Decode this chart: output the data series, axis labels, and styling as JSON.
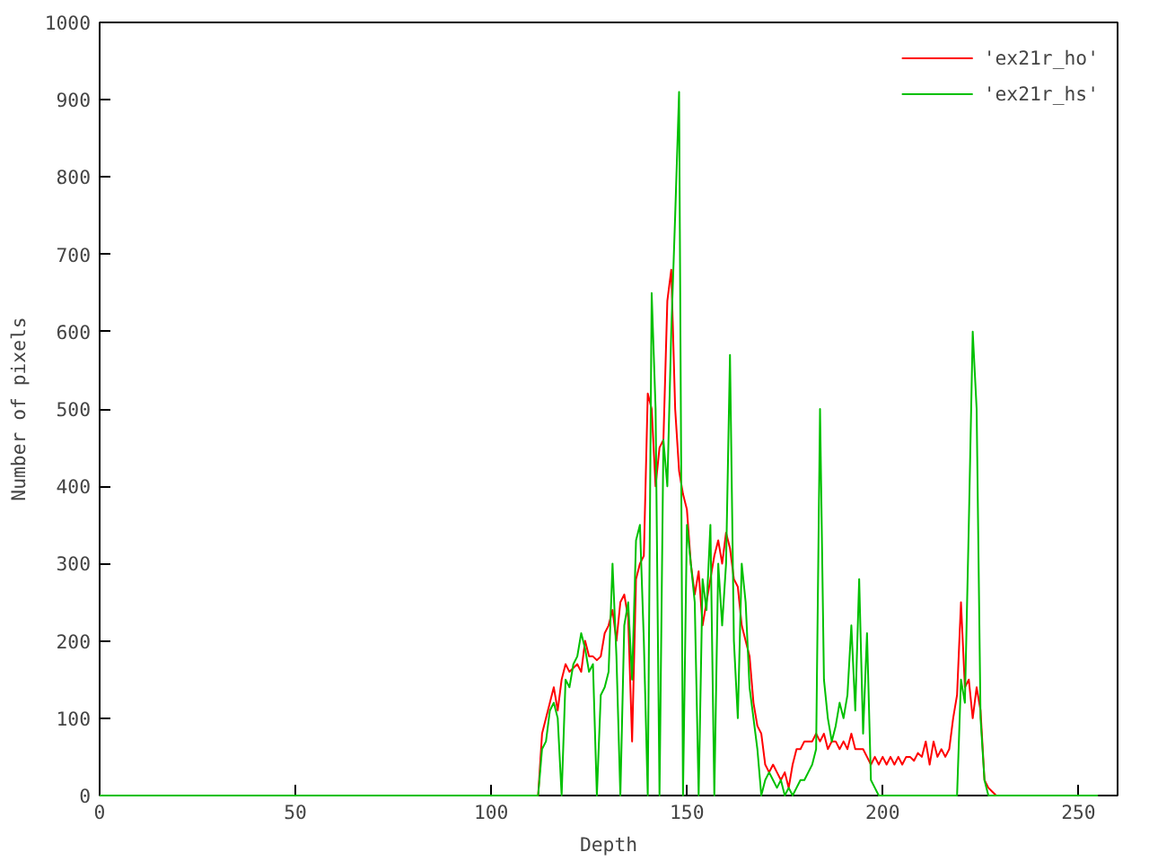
{
  "chart_data": {
    "type": "line",
    "xlabel": "Depth",
    "ylabel": "Number of pixels",
    "x": [
      0,
      111,
      112,
      113,
      114,
      115,
      116,
      117,
      118,
      119,
      120,
      121,
      122,
      123,
      124,
      125,
      126,
      127,
      128,
      129,
      130,
      131,
      132,
      133,
      134,
      135,
      136,
      137,
      138,
      139,
      140,
      141,
      142,
      143,
      144,
      145,
      146,
      147,
      148,
      149,
      150,
      151,
      152,
      153,
      154,
      155,
      156,
      157,
      158,
      159,
      160,
      161,
      162,
      163,
      164,
      165,
      166,
      167,
      168,
      169,
      170,
      171,
      172,
      173,
      174,
      175,
      176,
      177,
      178,
      179,
      180,
      181,
      182,
      183,
      184,
      185,
      186,
      187,
      188,
      189,
      190,
      191,
      192,
      193,
      194,
      195,
      196,
      197,
      198,
      199,
      200,
      201,
      202,
      203,
      204,
      205,
      206,
      207,
      208,
      209,
      210,
      211,
      212,
      213,
      214,
      215,
      216,
      217,
      218,
      219,
      220,
      221,
      222,
      223,
      224,
      225,
      226,
      227,
      228,
      229,
      230,
      255
    ],
    "series": [
      {
        "name": "'ex21r_ho'",
        "color": "#ff0000",
        "values": [
          0,
          0,
          0,
          80,
          100,
          120,
          140,
          110,
          150,
          170,
          160,
          165,
          170,
          160,
          200,
          180,
          180,
          175,
          180,
          210,
          220,
          240,
          200,
          250,
          260,
          230,
          70,
          280,
          300,
          310,
          520,
          500,
          400,
          450,
          460,
          640,
          680,
          500,
          420,
          390,
          370,
          300,
          260,
          290,
          220,
          250,
          280,
          310,
          330,
          300,
          340,
          320,
          280,
          270,
          220,
          200,
          180,
          120,
          90,
          80,
          40,
          30,
          40,
          30,
          20,
          30,
          10,
          40,
          60,
          60,
          70,
          70,
          70,
          80,
          70,
          80,
          60,
          70,
          70,
          60,
          70,
          60,
          80,
          60,
          60,
          60,
          50,
          40,
          50,
          40,
          50,
          40,
          50,
          40,
          50,
          40,
          50,
          50,
          45,
          55,
          50,
          70,
          40,
          70,
          50,
          60,
          50,
          60,
          100,
          130,
          250,
          140,
          150,
          100,
          140,
          110,
          20,
          10,
          5,
          0,
          0,
          0
        ]
      },
      {
        "name": "'ex21r_hs'",
        "color": "#00c000",
        "values": [
          0,
          0,
          0,
          60,
          70,
          110,
          120,
          100,
          0,
          150,
          140,
          170,
          180,
          210,
          190,
          160,
          170,
          0,
          130,
          140,
          160,
          300,
          180,
          0,
          220,
          250,
          150,
          330,
          350,
          200,
          0,
          650,
          500,
          0,
          460,
          400,
          600,
          750,
          910,
          0,
          350,
          300,
          250,
          0,
          280,
          240,
          350,
          0,
          300,
          220,
          300,
          570,
          200,
          100,
          300,
          250,
          140,
          100,
          60,
          0,
          20,
          30,
          20,
          10,
          20,
          0,
          10,
          0,
          10,
          20,
          20,
          30,
          40,
          60,
          500,
          150,
          100,
          70,
          90,
          120,
          100,
          130,
          220,
          110,
          280,
          80,
          210,
          20,
          10,
          0,
          0,
          0,
          0,
          0,
          0,
          0,
          0,
          0,
          0,
          0,
          0,
          0,
          0,
          0,
          0,
          0,
          0,
          0,
          0,
          0,
          150,
          120,
          350,
          600,
          500,
          100,
          20,
          0,
          0,
          0,
          0,
          0
        ]
      }
    ],
    "xlim": [
      0,
      260
    ],
    "ylim": [
      0,
      1000
    ],
    "xticks": [
      0,
      50,
      100,
      150,
      200,
      250
    ],
    "yticks": [
      0,
      100,
      200,
      300,
      400,
      500,
      600,
      700,
      800,
      900,
      1000
    ],
    "grid": false,
    "legend": "top right",
    "marker": "none",
    "line_style": "solid"
  }
}
